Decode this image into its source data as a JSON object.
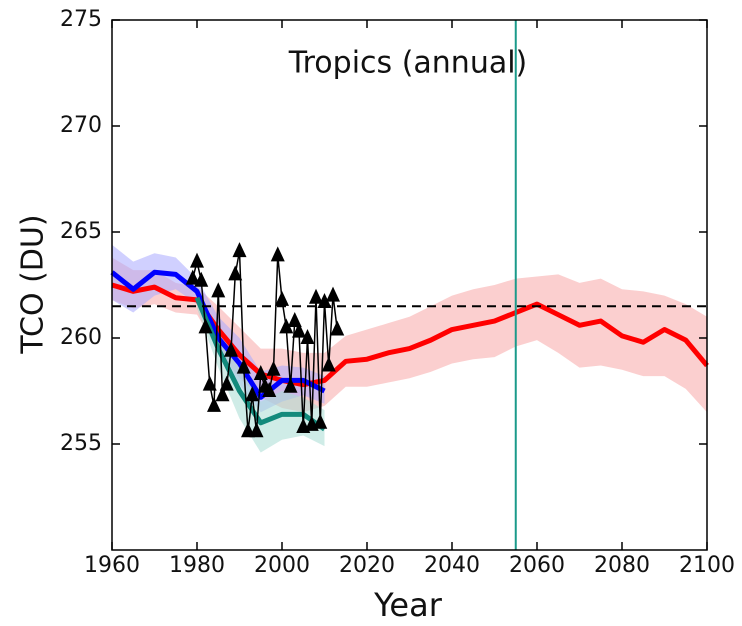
{
  "chart_data": {
    "type": "line",
    "title": "Tropics (annual)",
    "xlabel": "Year",
    "ylabel": "TCO (DU)",
    "xlim": [
      1960,
      2100
    ],
    "ylim": [
      250,
      275
    ],
    "xticks": [
      1960,
      1980,
      2000,
      2020,
      2040,
      2060,
      2080,
      2100
    ],
    "yticks": [
      255,
      260,
      265,
      270,
      275
    ],
    "hline": {
      "value": 261.5,
      "color": "#000000",
      "style": "dashed"
    },
    "vline": {
      "value": 2055,
      "color": "#1a9a8a"
    },
    "series": [
      {
        "color": "#ff0000",
        "band_color": "#f7a8a8",
        "x": [
          1960,
          1965,
          1970,
          1975,
          1980,
          1985,
          1990,
          1995,
          2000,
          2005,
          2010,
          2015,
          2020,
          2025,
          2030,
          2035,
          2040,
          2045,
          2050,
          2055,
          2060,
          2065,
          2070,
          2075,
          2080,
          2085,
          2090,
          2095,
          2100
        ],
        "values": [
          262.5,
          262.2,
          262.4,
          261.9,
          261.8,
          260.4,
          259.2,
          258.3,
          258.0,
          257.8,
          258.0,
          258.9,
          259.0,
          259.3,
          259.5,
          259.9,
          260.4,
          260.6,
          260.8,
          261.2,
          261.6,
          261.1,
          260.6,
          260.8,
          260.1,
          259.8,
          260.4,
          259.9,
          258.7
        ],
        "upper": [
          263.8,
          263.2,
          263.2,
          262.6,
          262.4,
          261.5,
          260.5,
          259.5,
          259.5,
          259.3,
          259.3,
          260.1,
          260.4,
          260.7,
          261.0,
          261.5,
          262.0,
          262.3,
          262.5,
          262.8,
          262.9,
          263.0,
          262.6,
          262.8,
          262.3,
          262.2,
          262.0,
          261.6,
          261.0
        ],
        "lower": [
          261.8,
          261.4,
          261.6,
          261.2,
          261.1,
          259.4,
          258.1,
          257.2,
          256.7,
          256.5,
          256.8,
          257.7,
          257.7,
          257.9,
          258.1,
          258.4,
          258.8,
          259.0,
          259.1,
          259.6,
          259.9,
          259.3,
          258.6,
          258.7,
          258.5,
          258.2,
          258.2,
          257.6,
          256.5
        ]
      },
      {
        "color": "#0000ff",
        "band_color": "#aaaaff",
        "x": [
          1960,
          1965,
          1970,
          1975,
          1980,
          1985,
          1990,
          1995,
          2000,
          2005,
          2010
        ],
        "values": [
          263.1,
          262.3,
          263.1,
          263.0,
          262.2,
          260.0,
          258.8,
          257.2,
          258.0,
          258.0,
          257.5
        ],
        "upper": [
          264.4,
          263.6,
          264.0,
          263.8,
          262.8,
          261.0,
          260.0,
          258.4,
          258.7,
          258.6,
          258.2
        ],
        "lower": [
          261.8,
          261.2,
          262.0,
          262.3,
          261.6,
          259.2,
          257.8,
          256.5,
          257.0,
          257.3,
          256.9
        ]
      },
      {
        "color": "#138a7c",
        "band_color": "#a8dcd4",
        "x": [
          1980,
          1985,
          1990,
          1995,
          2000,
          2005,
          2010
        ],
        "values": [
          261.9,
          259.5,
          257.5,
          256.0,
          256.4,
          256.4,
          255.7
        ],
        "upper": [
          262.3,
          260.2,
          258.6,
          257.0,
          257.5,
          257.2,
          256.6
        ],
        "lower": [
          261.4,
          258.6,
          256.2,
          254.6,
          255.2,
          255.4,
          254.9
        ]
      },
      {
        "color": "#000000",
        "marker": "triangle",
        "x": [
          1979,
          1980,
          1981,
          1982,
          1983,
          1984,
          1985,
          1986,
          1987,
          1988,
          1989,
          1990,
          1991,
          1992,
          1993,
          1994,
          1995,
          1996,
          1997,
          1998,
          1999,
          2000,
          2001,
          2002,
          2003,
          2004,
          2005,
          2006,
          2007,
          2008,
          2009,
          2010,
          2011,
          2012,
          2013
        ],
        "values": [
          262.8,
          263.6,
          262.7,
          260.5,
          257.8,
          256.8,
          262.2,
          257.3,
          257.8,
          259.4,
          263.0,
          264.1,
          258.6,
          255.6,
          257.3,
          255.6,
          258.3,
          257.7,
          257.5,
          258.5,
          263.9,
          261.8,
          260.5,
          257.7,
          260.8,
          260.3,
          255.8,
          260.0,
          255.9,
          261.9,
          256.0,
          261.7,
          258.7,
          262.0,
          260.4
        ]
      }
    ]
  }
}
